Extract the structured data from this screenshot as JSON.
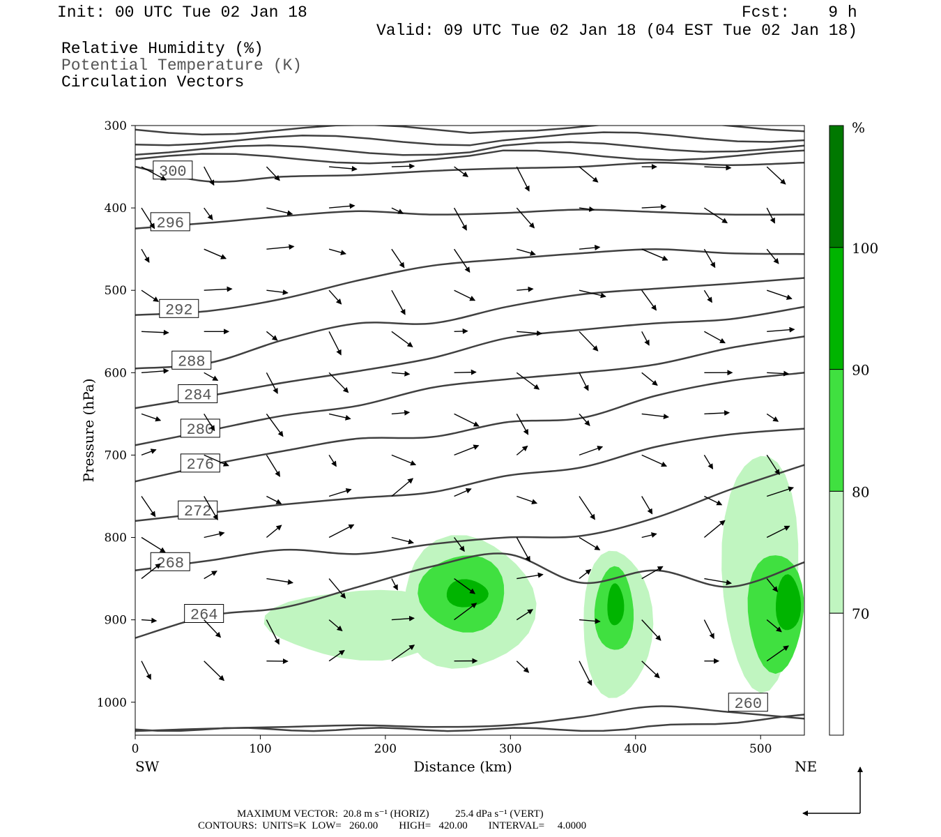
{
  "header": {
    "init": "Init: 00 UTC Tue 02 Jan 18",
    "fcst": "Fcst:    9 h",
    "valid": "Valid: 09 UTC Tue 02 Jan 18 (04 EST Tue 02 Jan 18)",
    "field1": "Relative Humidity (%)",
    "field2": "Potential Temperature (K)",
    "field3": "Circulation Vectors"
  },
  "footer": {
    "line1": "MAXIMUM VECTOR:  20.8 m s⁻¹ (HORIZ)          25.4 dPa s⁻¹ (VERT)",
    "line2": "CONTOURS:  UNITS=K  LOW=   260.00        HIGH=   420.00        INTERVAL=     4.0000"
  },
  "colors": {
    "rh70": "#c0f5c0",
    "rh80": "#40e040",
    "rh90": "#00b400",
    "rh100": "#007800",
    "contour": "#404040"
  },
  "chart_data": {
    "type": "cross-section",
    "xlabel": "Distance (km)",
    "ylabel": "Pressure (hPa)",
    "x_ticks": [
      "0",
      "100",
      "200",
      "300",
      "400",
      "500"
    ],
    "y_ticks": [
      "300",
      "400",
      "500",
      "600",
      "700",
      "800",
      "900",
      "1000"
    ],
    "xlim": [
      0,
      535
    ],
    "ylim": [
      300,
      1040
    ],
    "x_end_labels": {
      "left": "SW",
      "right": "NE"
    },
    "colorbar": {
      "unit": "%",
      "levels": [
        "70",
        "80",
        "90",
        "100"
      ]
    },
    "theta_contours": [
      {
        "label": "300",
        "x": 30,
        "p": [
          350,
          368,
          362,
          360,
          355,
          352,
          350,
          345,
          348,
          345
        ]
      },
      {
        "label": "296",
        "x": 30,
        "p": [
          425,
          418,
          410,
          404,
          408,
          406,
          402,
          405,
          408,
          408
        ]
      },
      {
        "label": "292",
        "x": 30,
        "p": [
          530,
          525,
          510,
          488,
          470,
          462,
          455,
          450,
          455,
          456
        ]
      },
      {
        "label": "288",
        "x": 30,
        "p": [
          595,
          588,
          560,
          540,
          540,
          520,
          505,
          498,
          492,
          485
        ]
      },
      {
        "label": "284",
        "x": 30,
        "p": [
          643,
          628,
          612,
          598,
          582,
          558,
          548,
          540,
          535,
          520
        ]
      },
      {
        "label": "280",
        "x": 30,
        "p": [
          688,
          670,
          652,
          640,
          618,
          608,
          600,
          590,
          570,
          556
        ]
      },
      {
        "label": "276",
        "x": 30,
        "p": [
          732,
          712,
          695,
          680,
          678,
          660,
          655,
          628,
          610,
          600
        ]
      },
      {
        "label": "272",
        "x": 30,
        "p": [
          780,
          770,
          760,
          752,
          745,
          725,
          715,
          690,
          675,
          668
        ]
      },
      {
        "label": "268",
        "x": 30,
        "p": [
          840,
          828,
          815,
          820,
          808,
          800,
          798,
          776,
          742,
          712
        ]
      },
      {
        "label": "264",
        "x": 30,
        "p": [
          922,
          895,
          885,
          860,
          835,
          820,
          855,
          840,
          860,
          830
        ]
      },
      {
        "label": "260",
        "x": 490,
        "p": [
          1035,
          1032,
          1030,
          1028,
          1030,
          1028,
          1018,
          1005,
          1012,
          1020
        ]
      }
    ],
    "rh_regions": [
      {
        "level": "70",
        "center_x": 180,
        "center_p": 900
      },
      {
        "level": "90",
        "center_x": 260,
        "center_p": 870
      },
      {
        "level": "100",
        "center_x": 265,
        "center_p": 870
      },
      {
        "level": "90",
        "center_x": 385,
        "center_p": 885
      },
      {
        "level": "100",
        "center_x": 385,
        "center_p": 880
      },
      {
        "level": "70",
        "center_x": 500,
        "center_p": 820
      },
      {
        "level": "90",
        "center_x": 515,
        "center_p": 890
      }
    ]
  }
}
